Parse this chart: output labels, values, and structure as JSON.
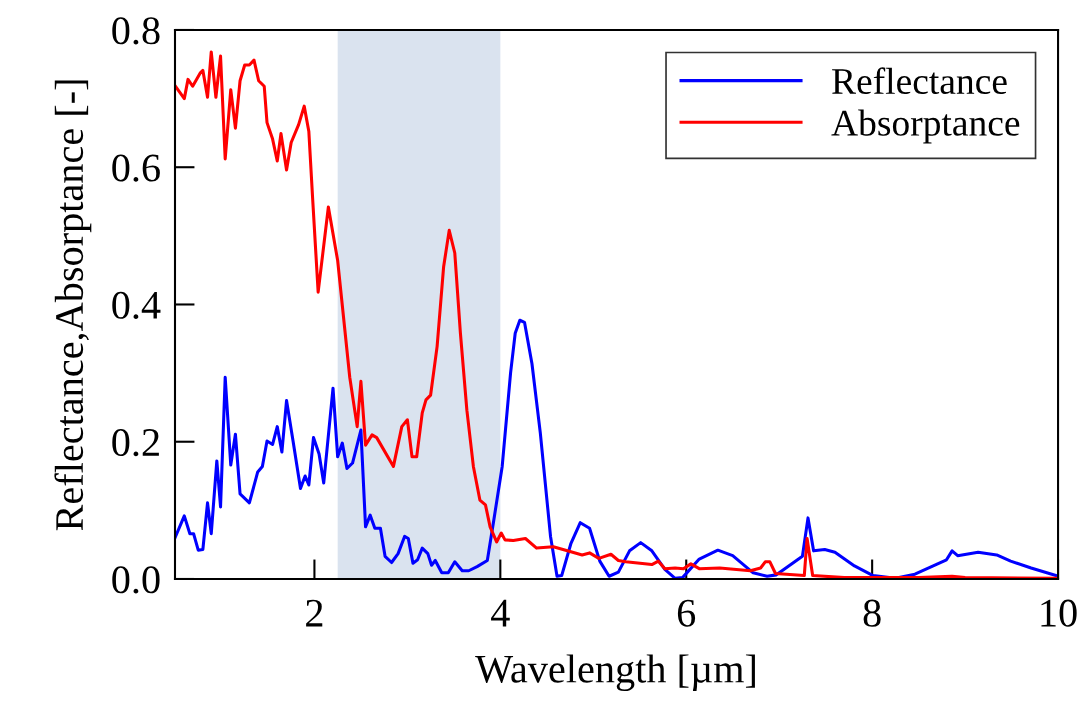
{
  "chart_data": {
    "type": "line",
    "xlabel": "Wavelength [µm]",
    "ylabel": "Reflectance,Absorptance [-]",
    "xlim": [
      0.5,
      10
    ],
    "xticks": [
      2,
      4,
      6,
      8,
      10
    ],
    "ylim": [
      0,
      0.8
    ],
    "yticks": [
      {
        "value": 0,
        "label": "0.0"
      },
      0.2,
      0.4,
      0.6,
      0.8
    ],
    "grid": false,
    "legend": "top right",
    "marker": "none",
    "line_style": "solid",
    "bands": [
      {
        "axis": "x",
        "from": 2.25,
        "to": 4.0,
        "color": "#c1d0e4"
      }
    ],
    "series": [
      {
        "name": "Reflectance",
        "color": "#0000ff",
        "x": [
          0.5,
          0.6,
          0.66,
          0.7,
          0.75,
          0.8,
          0.85,
          0.89,
          0.95,
          0.99,
          1.04,
          1.1,
          1.15,
          1.2,
          1.3,
          1.39,
          1.44,
          1.49,
          1.55,
          1.6,
          1.65,
          1.7,
          1.77,
          1.85,
          1.9,
          1.94,
          1.99,
          2.05,
          2.1,
          2.2,
          2.25,
          2.3,
          2.35,
          2.41,
          2.5,
          2.55,
          2.6,
          2.65,
          2.71,
          2.76,
          2.83,
          2.9,
          2.97,
          3.01,
          3.06,
          3.11,
          3.16,
          3.22,
          3.26,
          3.3,
          3.37,
          3.44,
          3.51,
          3.59,
          3.66,
          3.75,
          3.86,
          3.93,
          4.02,
          4.11,
          4.16,
          4.21,
          4.26,
          4.34,
          4.43,
          4.54,
          4.61,
          4.66,
          4.76,
          4.86,
          4.96,
          5.07,
          5.17,
          5.27,
          5.39,
          5.51,
          5.63,
          5.77,
          5.88,
          5.96,
          6.14,
          6.34,
          6.5,
          6.72,
          6.87,
          6.97,
          7.25,
          7.31,
          7.37,
          7.49,
          7.6,
          7.81,
          8.01,
          8.25,
          8.46,
          8.8,
          8.86,
          8.92,
          9.14,
          9.34,
          9.49,
          9.71,
          10.0
        ],
        "values": [
          0.06,
          0.092,
          0.066,
          0.066,
          0.042,
          0.043,
          0.111,
          0.066,
          0.172,
          0.105,
          0.294,
          0.166,
          0.211,
          0.124,
          0.111,
          0.156,
          0.164,
          0.201,
          0.196,
          0.222,
          0.185,
          0.26,
          0.201,
          0.132,
          0.15,
          0.137,
          0.206,
          0.182,
          0.14,
          0.278,
          0.178,
          0.198,
          0.161,
          0.169,
          0.217,
          0.076,
          0.093,
          0.074,
          0.074,
          0.033,
          0.024,
          0.037,
          0.062,
          0.059,
          0.023,
          0.028,
          0.045,
          0.037,
          0.02,
          0.027,
          0.009,
          0.009,
          0.025,
          0.012,
          0.012,
          0.018,
          0.027,
          0.086,
          0.164,
          0.3,
          0.358,
          0.377,
          0.374,
          0.314,
          0.213,
          0.062,
          0.004,
          0.005,
          0.052,
          0.082,
          0.074,
          0.026,
          0.004,
          0.01,
          0.041,
          0.053,
          0.041,
          0.014,
          0.001,
          0.002,
          0.029,
          0.042,
          0.034,
          0.009,
          0.004,
          0.006,
          0.033,
          0.089,
          0.041,
          0.043,
          0.039,
          0.019,
          0.005,
          0.001,
          0.007,
          0.028,
          0.041,
          0.034,
          0.039,
          0.035,
          0.026,
          0.016,
          0.004
        ]
      },
      {
        "name": "Absorptance",
        "color": "#ff0000",
        "x": [
          0.5,
          0.6,
          0.64,
          0.69,
          0.77,
          0.8,
          0.85,
          0.89,
          0.94,
          0.99,
          1.04,
          1.1,
          1.15,
          1.2,
          1.25,
          1.3,
          1.35,
          1.4,
          1.46,
          1.49,
          1.55,
          1.6,
          1.64,
          1.7,
          1.75,
          1.83,
          1.89,
          1.94,
          1.98,
          2.04,
          2.15,
          2.25,
          2.38,
          2.46,
          2.5,
          2.55,
          2.62,
          2.67,
          2.85,
          2.94,
          3.0,
          3.05,
          3.1,
          3.16,
          3.2,
          3.25,
          3.32,
          3.39,
          3.45,
          3.51,
          3.57,
          3.64,
          3.71,
          3.78,
          3.84,
          3.89,
          3.96,
          4.01,
          4.05,
          4.14,
          4.27,
          4.39,
          4.57,
          4.75,
          4.88,
          4.96,
          5.06,
          5.19,
          5.27,
          5.35,
          5.63,
          5.7,
          5.77,
          5.88,
          5.97,
          6.05,
          6.14,
          6.36,
          6.69,
          6.8,
          6.85,
          6.9,
          6.96,
          7.27,
          7.3,
          7.36,
          7.7,
          8.5,
          8.86,
          9.0,
          10.0
        ],
        "values": [
          0.719,
          0.7,
          0.728,
          0.718,
          0.737,
          0.741,
          0.702,
          0.768,
          0.702,
          0.762,
          0.612,
          0.713,
          0.657,
          0.726,
          0.749,
          0.749,
          0.756,
          0.726,
          0.718,
          0.665,
          0.641,
          0.609,
          0.649,
          0.596,
          0.636,
          0.662,
          0.689,
          0.652,
          0.556,
          0.418,
          0.542,
          0.464,
          0.294,
          0.222,
          0.288,
          0.195,
          0.21,
          0.206,
          0.164,
          0.222,
          0.232,
          0.178,
          0.178,
          0.242,
          0.261,
          0.268,
          0.339,
          0.455,
          0.508,
          0.475,
          0.359,
          0.246,
          0.164,
          0.115,
          0.108,
          0.076,
          0.054,
          0.067,
          0.057,
          0.056,
          0.059,
          0.045,
          0.047,
          0.04,
          0.035,
          0.038,
          0.03,
          0.036,
          0.027,
          0.025,
          0.021,
          0.026,
          0.015,
          0.016,
          0.015,
          0.022,
          0.015,
          0.016,
          0.012,
          0.016,
          0.025,
          0.025,
          0.008,
          0.005,
          0.059,
          0.005,
          0.002,
          0.002,
          0.004,
          0.002,
          0.001
        ]
      }
    ]
  }
}
